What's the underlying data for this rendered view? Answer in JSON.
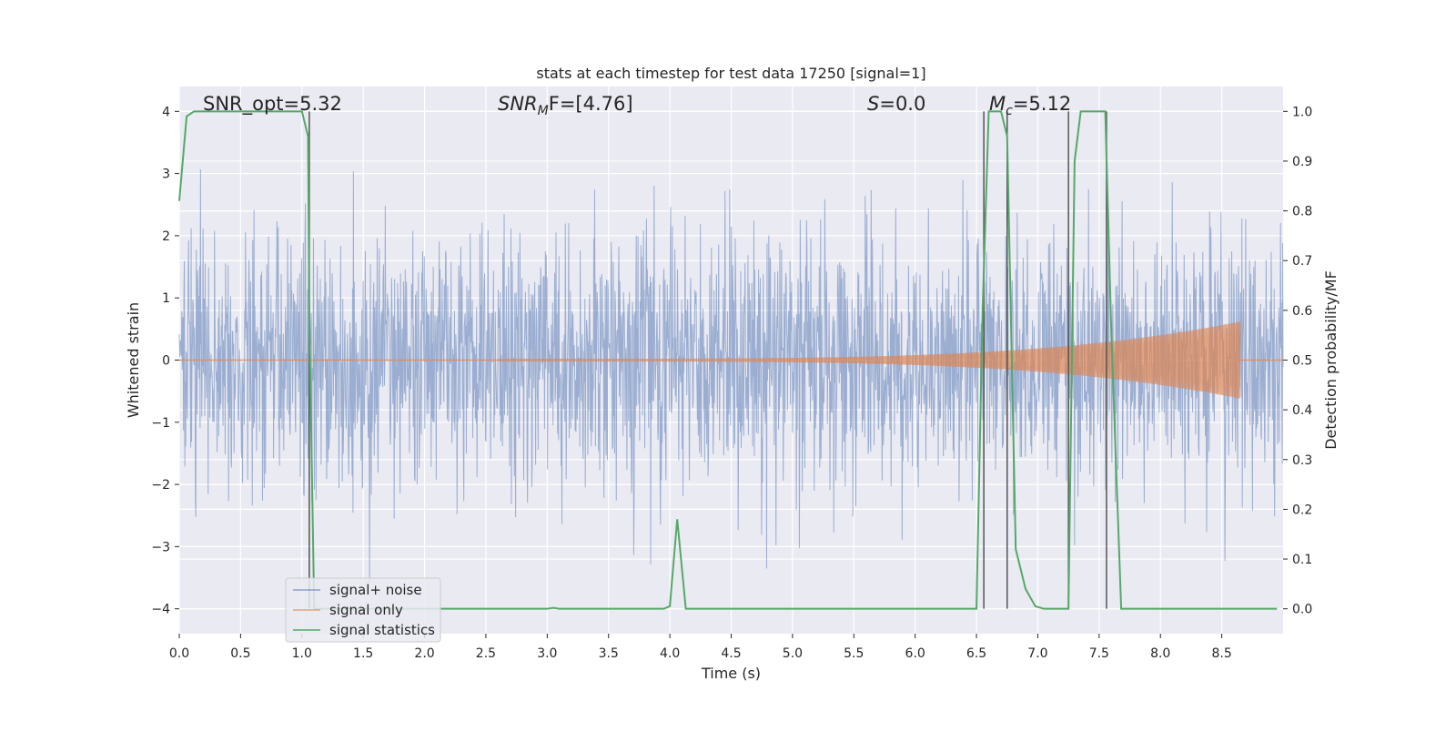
{
  "chart_data": {
    "type": "line",
    "title": "stats at each timestep for test data 17250 [signal=1]",
    "xlabel": "Time (s)",
    "ylabel_left": "Whitened strain",
    "ylabel_right": "Detection probability/MF",
    "xlim": [
      0.0,
      9.0
    ],
    "ylim_left": [
      -4.4,
      4.4
    ],
    "ylim_right": [
      -0.05,
      1.05
    ],
    "x_ticks": [
      "0.0",
      "0.5",
      "1.0",
      "1.5",
      "2.0",
      "2.5",
      "3.0",
      "3.5",
      "4.0",
      "4.5",
      "5.0",
      "5.5",
      "6.0",
      "6.5",
      "7.0",
      "7.5",
      "8.0",
      "8.5"
    ],
    "y_left_ticks": [
      "4",
      "3",
      "2",
      "1",
      "0",
      "−1",
      "−2",
      "−3",
      "−4"
    ],
    "y_right_ticks": [
      "1.0",
      "0.9",
      "0.8",
      "0.7",
      "0.6",
      "0.5",
      "0.4",
      "0.3",
      "0.2",
      "0.1",
      "0.0"
    ],
    "grid": true,
    "legend_position": "lower-left",
    "annotations": {
      "snr_opt": "SNR_opt=5.32",
      "snr_mf_sym": "SNR",
      "snr_mf_sub": "M",
      "snr_mf_rest": "F=[4.76]",
      "s_sym": "S",
      "s_rest": "=0.0",
      "mc_sym": "M",
      "mc_sub": "c",
      "mc_rest": "=5.12"
    },
    "series": [
      {
        "name": "signal+ noise",
        "color": "#4c72b0",
        "axis": "left",
        "description_kind": "noise",
        "amplitude_std": 1.0
      },
      {
        "name": "signal only",
        "color": "#dd8452",
        "axis": "left",
        "description_kind": "chirp",
        "chirp_start": 2.6,
        "chirp_end": 8.65,
        "peak_amplitude": 0.62
      },
      {
        "name": "signal statistics",
        "color": "#55a868",
        "axis": "right",
        "x": [
          0.0,
          0.06,
          0.12,
          0.2,
          0.5,
          0.9,
          1.0,
          1.05,
          1.06,
          1.1,
          1.12,
          1.2,
          2.0,
          3.0,
          3.05,
          3.1,
          3.5,
          3.95,
          4.0,
          4.06,
          4.13,
          4.2,
          5.0,
          6.0,
          6.5,
          6.55,
          6.6,
          6.65,
          6.7,
          6.75,
          6.82,
          6.9,
          6.98,
          7.05,
          7.15,
          7.25,
          7.3,
          7.35,
          7.45,
          7.55,
          7.6,
          7.68,
          7.75,
          8.0,
          8.5,
          8.95
        ],
        "y": [
          0.82,
          0.99,
          1.0,
          1.0,
          1.0,
          1.0,
          1.0,
          0.95,
          0.6,
          0.0,
          0.0,
          0.0,
          0.0,
          0.0,
          0.002,
          0.0,
          0.0,
          0.0,
          0.005,
          0.18,
          0.0,
          0.0,
          0.0,
          0.0,
          0.0,
          0.6,
          1.0,
          1.0,
          1.0,
          0.95,
          0.12,
          0.04,
          0.005,
          0.0,
          0.0,
          0.0,
          0.9,
          1.0,
          1.0,
          1.0,
          0.55,
          0.0,
          0.0,
          0.0,
          0.0,
          0.0
        ]
      },
      {
        "name": "",
        "color": "#555555",
        "axis": "right",
        "description_kind": "vertical_markers",
        "x": [
          1.06,
          6.56,
          6.75,
          7.25,
          7.56
        ]
      }
    ]
  }
}
